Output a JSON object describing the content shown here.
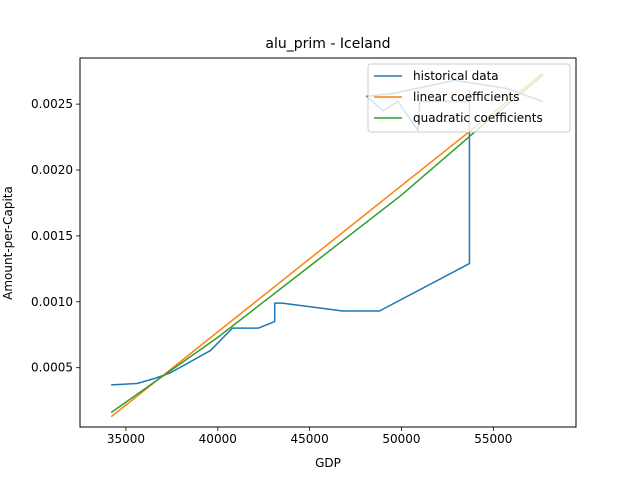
{
  "chart_data": {
    "type": "line",
    "title": "alu_prim - Iceland",
    "xlabel": "GDP",
    "ylabel": "Amount-per-Capita",
    "xlim": [
      32500,
      59500
    ],
    "ylim": [
      5e-05,
      0.00285
    ],
    "xticks": [
      35000,
      40000,
      45000,
      50000,
      55000
    ],
    "xtick_labels": [
      "35000",
      "40000",
      "45000",
      "50000",
      "55000"
    ],
    "yticks": [
      0.0005,
      0.001,
      0.0015,
      0.002,
      0.0025
    ],
    "ytick_labels": [
      "0.0005",
      "0.0010",
      "0.0015",
      "0.0020",
      "0.0025"
    ],
    "legend_position": "top-right",
    "grid": false,
    "series": [
      {
        "name": "historical data",
        "color": "#1f77b4",
        "points": [
          [
            34200,
            0.00037
          ],
          [
            35600,
            0.00038
          ],
          [
            36600,
            0.00042
          ],
          [
            37400,
            0.00046
          ],
          [
            39600,
            0.00063
          ],
          [
            40800,
            0.0008
          ],
          [
            42200,
            0.0008
          ],
          [
            43100,
            0.00085
          ],
          [
            43100,
            0.00099
          ],
          [
            43500,
            0.00099
          ],
          [
            46800,
            0.00093
          ],
          [
            48800,
            0.00093
          ],
          [
            53700,
            0.00129
          ],
          [
            53700,
            0.00232
          ],
          [
            53700,
            0.0026
          ],
          [
            53700,
            0.00252
          ],
          [
            51000,
            0.00252
          ],
          [
            50900,
            0.0023
          ],
          [
            49800,
            0.00252
          ],
          [
            49000,
            0.00245
          ],
          [
            48100,
            0.00256
          ],
          [
            49500,
            0.00258
          ],
          [
            52900,
            0.00268
          ],
          [
            55700,
            0.00262
          ],
          [
            57700,
            0.00252
          ]
        ]
      },
      {
        "name": "linear coefficients",
        "color": "#ff7f0e",
        "points": [
          [
            34200,
            0.000128
          ],
          [
            57700,
            0.002736
          ]
        ]
      },
      {
        "name": "quadratic coefficients",
        "color": "#2ca02c",
        "points": [
          [
            34200,
            0.00016
          ],
          [
            40000,
            0.00073
          ],
          [
            45000,
            0.00127
          ],
          [
            50000,
            0.00181
          ],
          [
            55000,
            0.00241
          ],
          [
            57700,
            0.00272
          ]
        ]
      }
    ]
  }
}
